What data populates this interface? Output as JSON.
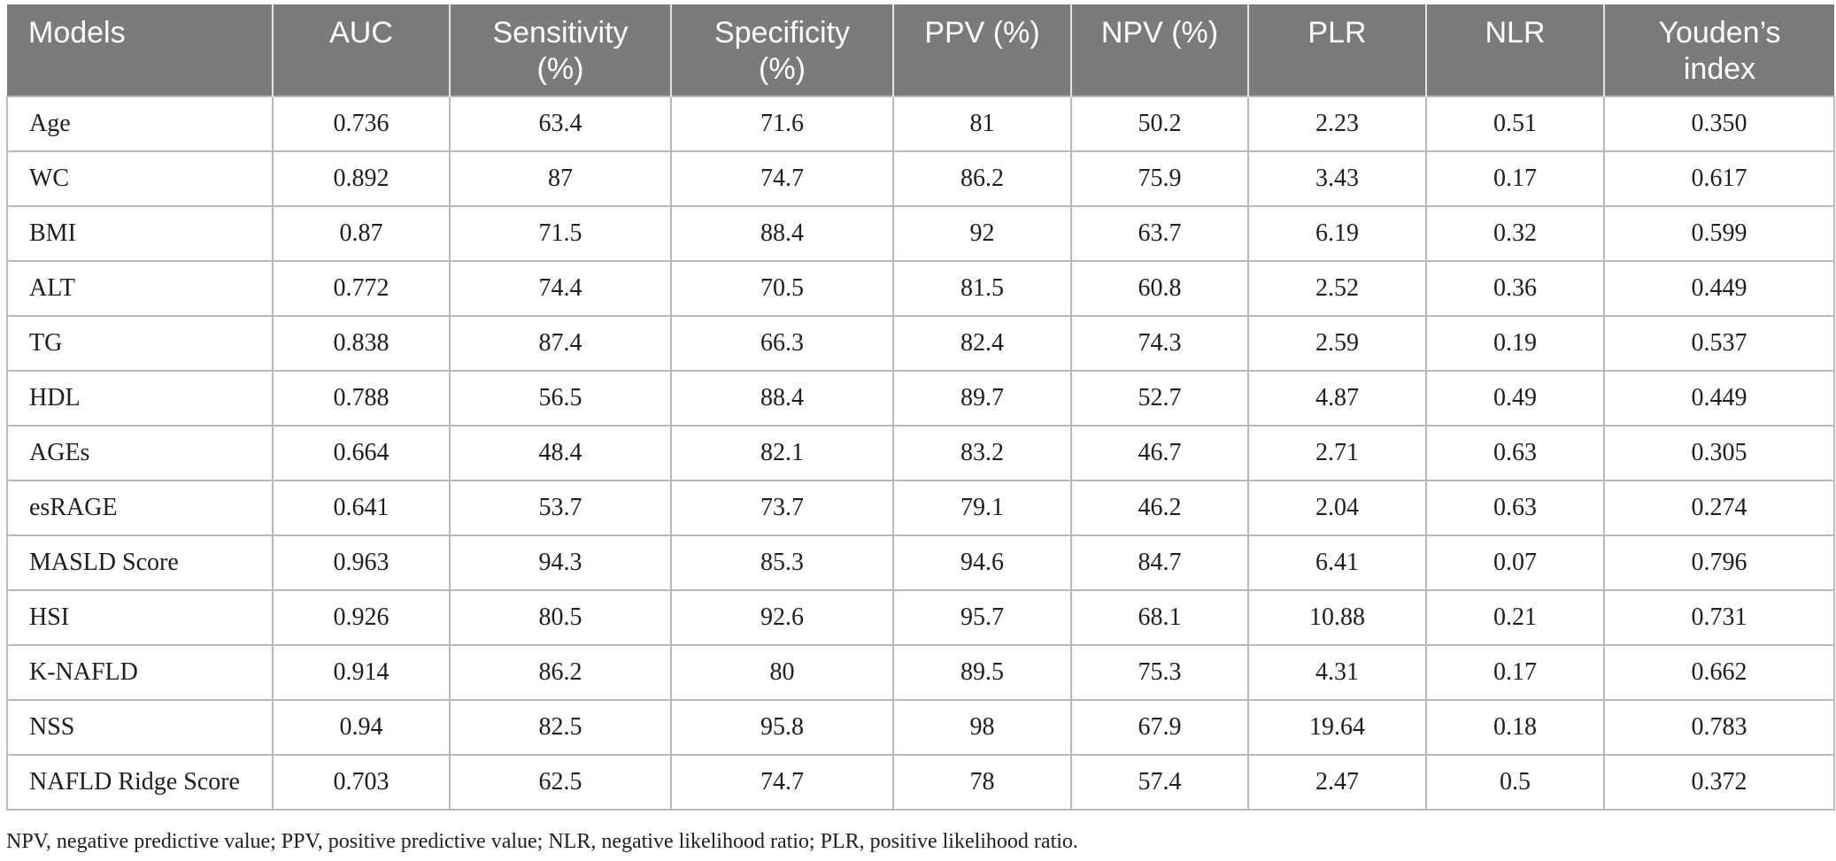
{
  "table": {
    "headers": [
      "Models",
      "AUC",
      "Sensitivity\n(%)",
      "Specificity\n(%)",
      "PPV (%)",
      "NPV (%)",
      "PLR",
      "NLR",
      "Youden’s\nindex"
    ],
    "rows": [
      [
        "Age",
        "0.736",
        "63.4",
        "71.6",
        "81",
        "50.2",
        "2.23",
        "0.51",
        "0.350"
      ],
      [
        "WC",
        "0.892",
        "87",
        "74.7",
        "86.2",
        "75.9",
        "3.43",
        "0.17",
        "0.617"
      ],
      [
        "BMI",
        "0.87",
        "71.5",
        "88.4",
        "92",
        "63.7",
        "6.19",
        "0.32",
        "0.599"
      ],
      [
        "ALT",
        "0.772",
        "74.4",
        "70.5",
        "81.5",
        "60.8",
        "2.52",
        "0.36",
        "0.449"
      ],
      [
        "TG",
        "0.838",
        "87.4",
        "66.3",
        "82.4",
        "74.3",
        "2.59",
        "0.19",
        "0.537"
      ],
      [
        "HDL",
        "0.788",
        "56.5",
        "88.4",
        "89.7",
        "52.7",
        "4.87",
        "0.49",
        "0.449"
      ],
      [
        "AGEs",
        "0.664",
        "48.4",
        "82.1",
        "83.2",
        "46.7",
        "2.71",
        "0.63",
        "0.305"
      ],
      [
        "esRAGE",
        "0.641",
        "53.7",
        "73.7",
        "79.1",
        "46.2",
        "2.04",
        "0.63",
        "0.274"
      ],
      [
        "MASLD Score",
        "0.963",
        "94.3",
        "85.3",
        "94.6",
        "84.7",
        "6.41",
        "0.07",
        "0.796"
      ],
      [
        "HSI",
        "0.926",
        "80.5",
        "92.6",
        "95.7",
        "68.1",
        "10.88",
        "0.21",
        "0.731"
      ],
      [
        "K-NAFLD",
        "0.914",
        "86.2",
        "80",
        "89.5",
        "75.3",
        "4.31",
        "0.17",
        "0.662"
      ],
      [
        "NSS",
        "0.94",
        "82.5",
        "95.8",
        "98",
        "67.9",
        "19.64",
        "0.18",
        "0.783"
      ],
      [
        "NAFLD Ridge Score",
        "0.703",
        "62.5",
        "74.7",
        "78",
        "57.4",
        "2.47",
        "0.5",
        "0.372"
      ]
    ]
  },
  "footnote": "NPV, negative predictive value; PPV, positive predictive value; NLR, negative likelihood ratio; PLR, positive likelihood ratio.",
  "colors": {
    "header_background": "#7b7b7b",
    "header_text": "#ffffff",
    "grid_lines": "#b9b9b9"
  }
}
